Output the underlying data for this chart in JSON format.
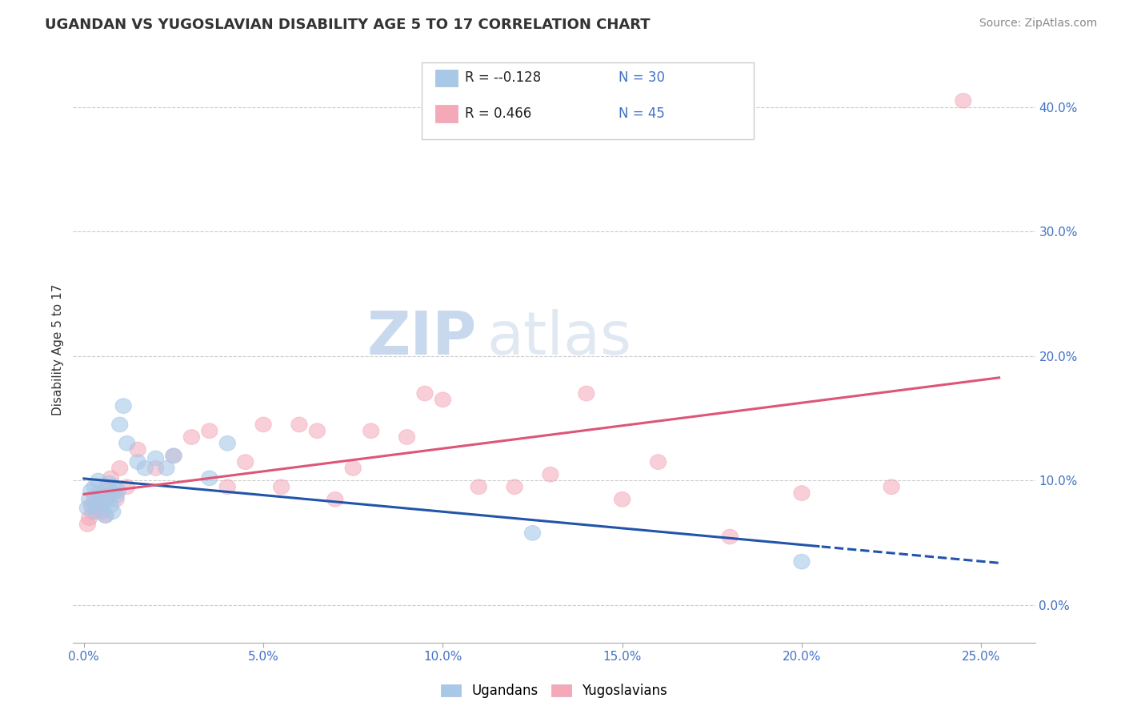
{
  "title": "UGANDAN VS YUGOSLAVIAN DISABILITY AGE 5 TO 17 CORRELATION CHART",
  "source": "Source: ZipAtlas.com",
  "ylabel": "Disability Age 5 to 17",
  "right_yvalues": [
    0.0,
    10.0,
    20.0,
    30.0,
    40.0
  ],
  "right_ytick_labels": [
    "0.0%",
    "10.0%",
    "20.0%",
    "30.0%",
    "40.0%"
  ],
  "legend_blue_r": "-0.128",
  "legend_blue_n": "30",
  "legend_pink_r": "0.466",
  "legend_pink_n": "45",
  "blue_color": "#A8C8E8",
  "pink_color": "#F4A8B8",
  "blue_line_color": "#2255AA",
  "pink_line_color": "#DD5577",
  "watermark_zip": "ZIP",
  "watermark_atlas": "atlas",
  "xmin": -0.3,
  "xmax": 26.5,
  "ymin": -3.0,
  "ymax": 44.0,
  "ugandan_points": [
    [
      0.1,
      7.8
    ],
    [
      0.15,
      8.5
    ],
    [
      0.2,
      9.2
    ],
    [
      0.25,
      8.0
    ],
    [
      0.3,
      9.5
    ],
    [
      0.35,
      7.5
    ],
    [
      0.4,
      10.0
    ],
    [
      0.45,
      8.8
    ],
    [
      0.5,
      9.0
    ],
    [
      0.55,
      8.2
    ],
    [
      0.6,
      7.2
    ],
    [
      0.65,
      8.5
    ],
    [
      0.7,
      9.8
    ],
    [
      0.75,
      8.0
    ],
    [
      0.8,
      7.5
    ],
    [
      0.85,
      9.5
    ],
    [
      0.9,
      8.8
    ],
    [
      0.95,
      9.2
    ],
    [
      1.0,
      14.5
    ],
    [
      1.1,
      16.0
    ],
    [
      1.2,
      13.0
    ],
    [
      1.5,
      11.5
    ],
    [
      1.7,
      11.0
    ],
    [
      2.0,
      11.8
    ],
    [
      2.3,
      11.0
    ],
    [
      2.5,
      12.0
    ],
    [
      3.5,
      10.2
    ],
    [
      4.0,
      13.0
    ],
    [
      12.5,
      5.8
    ],
    [
      20.0,
      3.5
    ]
  ],
  "yugoslavian_points": [
    [
      0.1,
      6.5
    ],
    [
      0.15,
      7.0
    ],
    [
      0.2,
      8.0
    ],
    [
      0.25,
      7.5
    ],
    [
      0.3,
      8.5
    ],
    [
      0.35,
      7.8
    ],
    [
      0.4,
      9.0
    ],
    [
      0.45,
      8.2
    ],
    [
      0.5,
      7.5
    ],
    [
      0.55,
      8.8
    ],
    [
      0.6,
      7.2
    ],
    [
      0.65,
      9.5
    ],
    [
      0.7,
      8.8
    ],
    [
      0.75,
      10.2
    ],
    [
      0.8,
      9.0
    ],
    [
      0.9,
      8.5
    ],
    [
      1.0,
      11.0
    ],
    [
      1.2,
      9.5
    ],
    [
      1.5,
      12.5
    ],
    [
      2.0,
      11.0
    ],
    [
      2.5,
      12.0
    ],
    [
      3.0,
      13.5
    ],
    [
      3.5,
      14.0
    ],
    [
      4.0,
      9.5
    ],
    [
      4.5,
      11.5
    ],
    [
      5.0,
      14.5
    ],
    [
      5.5,
      9.5
    ],
    [
      6.0,
      14.5
    ],
    [
      6.5,
      14.0
    ],
    [
      7.0,
      8.5
    ],
    [
      7.5,
      11.0
    ],
    [
      8.0,
      14.0
    ],
    [
      9.0,
      13.5
    ],
    [
      9.5,
      17.0
    ],
    [
      10.0,
      16.5
    ],
    [
      11.0,
      9.5
    ],
    [
      12.0,
      9.5
    ],
    [
      13.0,
      10.5
    ],
    [
      14.0,
      17.0
    ],
    [
      15.0,
      8.5
    ],
    [
      16.0,
      11.5
    ],
    [
      18.0,
      5.5
    ],
    [
      20.0,
      9.0
    ],
    [
      22.5,
      9.5
    ],
    [
      24.5,
      40.5
    ]
  ]
}
